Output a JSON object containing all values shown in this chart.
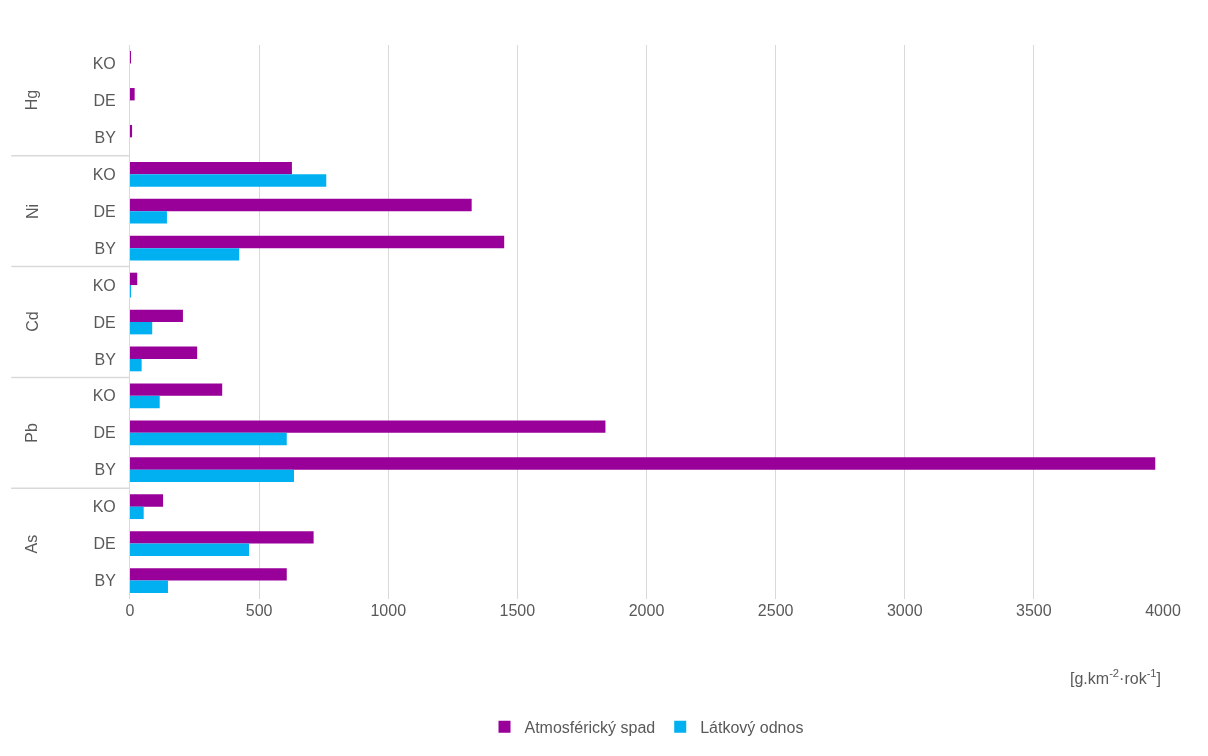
{
  "chart_data": {
    "type": "bar",
    "orientation": "horizontal",
    "categories": [
      "KO",
      "DE",
      "BY",
      "KO",
      "DE",
      "BY",
      "KO",
      "DE",
      "BY",
      "KO",
      "DE",
      "BY",
      "KO",
      "DE",
      "BY"
    ],
    "annotations": [
      "Hg",
      "Ni",
      "Cd",
      "Pb",
      "As"
    ],
    "xlabel": "[g.km$^{-2}$·rok$^{-1}$]",
    "series": [
      {
        "name": "Atmosférický spad",
        "color": "#990099",
        "values": [
          2,
          18,
          8,
          627,
          1323,
          1449,
          28,
          205,
          260,
          357,
          1841,
          3970,
          128,
          711,
          607
        ]
      },
      {
        "name": "Látkový odnos",
        "color": "#00b0f0",
        "values": [
          null,
          null,
          null,
          760,
          143,
          423,
          2,
          86,
          45,
          115,
          607,
          635,
          53,
          461,
          147
        ]
      }
    ],
    "xlim": [
      0,
      4000
    ],
    "xticks": [
      0,
      500,
      1000,
      1500,
      2000,
      2500,
      3000,
      3500,
      4000
    ],
    "grid": "x",
    "legend": "bottom"
  }
}
